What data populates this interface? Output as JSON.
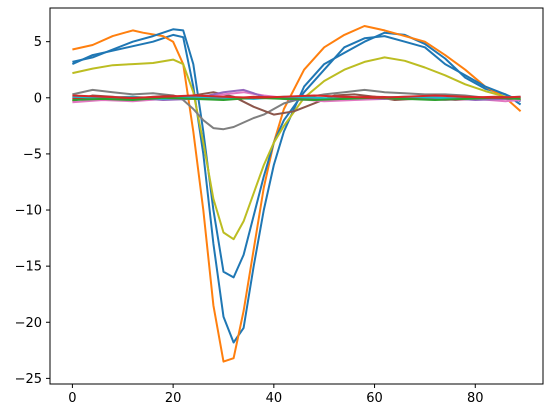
{
  "chart_data": {
    "type": "line",
    "title": "",
    "xlabel": "",
    "ylabel": "",
    "xlim": [
      -4.45,
      93.45
    ],
    "ylim": [
      -25.5,
      8.0
    ],
    "grid": false,
    "legend": "none",
    "x_ticks": [
      0,
      20,
      40,
      60,
      80
    ],
    "y_ticks": [
      5,
      0,
      -5,
      -10,
      -15,
      -20,
      -25
    ],
    "x_tick_labels": [
      "0",
      "20",
      "40",
      "60",
      "80"
    ],
    "y_tick_labels": [
      "5",
      "0",
      "−5",
      "−10",
      "−15",
      "−20",
      "−25"
    ],
    "series": [
      {
        "color": "#1f77b4",
        "points": [
          [
            0,
            3.0
          ],
          [
            4,
            3.8
          ],
          [
            8,
            4.2
          ],
          [
            12,
            4.6
          ],
          [
            16,
            5.0
          ],
          [
            20,
            5.6
          ],
          [
            22,
            5.4
          ],
          [
            24,
            1.0
          ],
          [
            26,
            -5.0
          ],
          [
            28,
            -13.0
          ],
          [
            30,
            -19.5
          ],
          [
            32,
            -21.8
          ],
          [
            34,
            -20.5
          ],
          [
            36,
            -15.0
          ],
          [
            38,
            -10.0
          ],
          [
            40,
            -6.0
          ],
          [
            42,
            -3.0
          ],
          [
            46,
            1.0
          ],
          [
            50,
            3.0
          ],
          [
            54,
            4.0
          ],
          [
            58,
            5.0
          ],
          [
            62,
            5.8
          ],
          [
            66,
            5.6
          ],
          [
            70,
            4.8
          ],
          [
            74,
            3.5
          ],
          [
            78,
            1.8
          ],
          [
            82,
            0.8
          ],
          [
            86,
            0.3
          ],
          [
            89,
            -0.6
          ]
        ]
      },
      {
        "color": "#ff7f0e",
        "points": [
          [
            0,
            4.3
          ],
          [
            4,
            4.7
          ],
          [
            8,
            5.5
          ],
          [
            12,
            6.0
          ],
          [
            14,
            5.8
          ],
          [
            18,
            5.5
          ],
          [
            20,
            5.0
          ],
          [
            22,
            3.0
          ],
          [
            24,
            -3.0
          ],
          [
            26,
            -10.0
          ],
          [
            28,
            -18.5
          ],
          [
            30,
            -23.5
          ],
          [
            32,
            -23.2
          ],
          [
            34,
            -19.0
          ],
          [
            36,
            -13.5
          ],
          [
            38,
            -8.0
          ],
          [
            40,
            -4.0
          ],
          [
            42,
            -1.0
          ],
          [
            46,
            2.5
          ],
          [
            50,
            4.5
          ],
          [
            54,
            5.6
          ],
          [
            58,
            6.4
          ],
          [
            62,
            6.0
          ],
          [
            66,
            5.5
          ],
          [
            70,
            5.0
          ],
          [
            74,
            3.8
          ],
          [
            78,
            2.5
          ],
          [
            82,
            1.0
          ],
          [
            86,
            0.0
          ],
          [
            89,
            -1.2
          ]
        ]
      },
      {
        "color": "#1f77b4",
        "points": [
          [
            0,
            3.2
          ],
          [
            4,
            3.6
          ],
          [
            8,
            4.3
          ],
          [
            12,
            5.0
          ],
          [
            16,
            5.5
          ],
          [
            20,
            6.1
          ],
          [
            22,
            6.0
          ],
          [
            24,
            3.0
          ],
          [
            26,
            -3.0
          ],
          [
            28,
            -10.0
          ],
          [
            30,
            -15.5
          ],
          [
            32,
            -16.0
          ],
          [
            34,
            -14.0
          ],
          [
            36,
            -10.5
          ],
          [
            38,
            -7.0
          ],
          [
            40,
            -4.0
          ],
          [
            42,
            -2.0
          ],
          [
            46,
            0.5
          ],
          [
            50,
            2.5
          ],
          [
            54,
            4.5
          ],
          [
            58,
            5.3
          ],
          [
            62,
            5.5
          ],
          [
            66,
            5.0
          ],
          [
            70,
            4.5
          ],
          [
            74,
            3.0
          ],
          [
            78,
            2.0
          ],
          [
            82,
            1.0
          ],
          [
            86,
            0.3
          ],
          [
            89,
            -0.3
          ]
        ]
      },
      {
        "color": "#bcbd22",
        "points": [
          [
            0,
            2.2
          ],
          [
            4,
            2.6
          ],
          [
            8,
            2.9
          ],
          [
            12,
            3.0
          ],
          [
            16,
            3.1
          ],
          [
            20,
            3.4
          ],
          [
            22,
            3.0
          ],
          [
            24,
            0.5
          ],
          [
            26,
            -4.0
          ],
          [
            28,
            -9.0
          ],
          [
            30,
            -12.0
          ],
          [
            32,
            -12.6
          ],
          [
            34,
            -11.0
          ],
          [
            36,
            -8.5
          ],
          [
            38,
            -6.0
          ],
          [
            40,
            -4.0
          ],
          [
            42,
            -2.5
          ],
          [
            46,
            0.0
          ],
          [
            50,
            1.5
          ],
          [
            54,
            2.5
          ],
          [
            58,
            3.2
          ],
          [
            62,
            3.6
          ],
          [
            66,
            3.3
          ],
          [
            70,
            2.7
          ],
          [
            74,
            2.0
          ],
          [
            78,
            1.2
          ],
          [
            82,
            0.6
          ],
          [
            86,
            0.1
          ],
          [
            89,
            -0.2
          ]
        ]
      },
      {
        "color": "#7f7f7f",
        "points": [
          [
            0,
            0.3
          ],
          [
            4,
            0.7
          ],
          [
            8,
            0.5
          ],
          [
            12,
            0.3
          ],
          [
            16,
            0.4
          ],
          [
            20,
            0.2
          ],
          [
            22,
            -0.2
          ],
          [
            24,
            -1.0
          ],
          [
            26,
            -2.0
          ],
          [
            28,
            -2.7
          ],
          [
            30,
            -2.8
          ],
          [
            32,
            -2.6
          ],
          [
            34,
            -2.2
          ],
          [
            36,
            -1.8
          ],
          [
            38,
            -1.5
          ],
          [
            40,
            -1.0
          ],
          [
            42,
            -0.5
          ],
          [
            46,
            0.0
          ],
          [
            50,
            0.3
          ],
          [
            54,
            0.5
          ],
          [
            58,
            0.7
          ],
          [
            62,
            0.5
          ],
          [
            66,
            0.4
          ],
          [
            70,
            0.3
          ],
          [
            74,
            0.3
          ],
          [
            78,
            0.2
          ],
          [
            82,
            0.0
          ],
          [
            86,
            -0.1
          ],
          [
            89,
            -0.2
          ]
        ]
      },
      {
        "color": "#8c564b",
        "points": [
          [
            0,
            -0.3
          ],
          [
            4,
            0.2
          ],
          [
            8,
            0.1
          ],
          [
            12,
            -0.1
          ],
          [
            16,
            0.1
          ],
          [
            20,
            0.2
          ],
          [
            22,
            0.0
          ],
          [
            24,
            0.2
          ],
          [
            28,
            0.5
          ],
          [
            32,
            0.1
          ],
          [
            36,
            -0.8
          ],
          [
            40,
            -1.5
          ],
          [
            44,
            -1.2
          ],
          [
            48,
            -0.5
          ],
          [
            52,
            0.2
          ],
          [
            56,
            0.3
          ],
          [
            60,
            0.1
          ],
          [
            64,
            -0.2
          ],
          [
            68,
            -0.1
          ],
          [
            72,
            0.0
          ],
          [
            76,
            -0.2
          ],
          [
            80,
            -0.1
          ],
          [
            84,
            0.0
          ],
          [
            89,
            -0.2
          ]
        ]
      },
      {
        "color": "#e377c2",
        "points": [
          [
            0,
            -0.4
          ],
          [
            6,
            -0.2
          ],
          [
            12,
            -0.3
          ],
          [
            18,
            -0.1
          ],
          [
            24,
            0.1
          ],
          [
            30,
            0.3
          ],
          [
            34,
            0.5
          ],
          [
            38,
            0.2
          ],
          [
            44,
            -0.1
          ],
          [
            50,
            -0.3
          ],
          [
            56,
            -0.2
          ],
          [
            62,
            -0.1
          ],
          [
            68,
            0.0
          ],
          [
            74,
            -0.2
          ],
          [
            80,
            -0.1
          ],
          [
            86,
            -0.3
          ],
          [
            89,
            -0.2
          ]
        ]
      },
      {
        "color": "#9467bd",
        "points": [
          [
            0,
            0.0
          ],
          [
            6,
            -0.1
          ],
          [
            12,
            0.0
          ],
          [
            18,
            -0.2
          ],
          [
            24,
            -0.1
          ],
          [
            30,
            0.5
          ],
          [
            34,
            0.7
          ],
          [
            38,
            0.1
          ],
          [
            44,
            -0.2
          ],
          [
            50,
            -0.1
          ],
          [
            56,
            0.0
          ],
          [
            62,
            -0.1
          ],
          [
            68,
            0.1
          ],
          [
            74,
            0.0
          ],
          [
            80,
            -0.2
          ],
          [
            86,
            -0.1
          ],
          [
            89,
            0.0
          ]
        ]
      },
      {
        "color": "#d62728",
        "points": [
          [
            0,
            -0.1
          ],
          [
            6,
            0.0
          ],
          [
            12,
            -0.1
          ],
          [
            18,
            0.1
          ],
          [
            24,
            0.0
          ],
          [
            30,
            -0.1
          ],
          [
            36,
            0.1
          ],
          [
            42,
            0.0
          ],
          [
            48,
            -0.1
          ],
          [
            54,
            0.0
          ],
          [
            60,
            0.1
          ],
          [
            66,
            0.0
          ],
          [
            72,
            -0.1
          ],
          [
            78,
            0.0
          ],
          [
            84,
            0.1
          ],
          [
            89,
            0.0
          ]
        ]
      },
      {
        "color": "#17becf",
        "points": [
          [
            0,
            0.1
          ],
          [
            6,
            0.0
          ],
          [
            12,
            0.1
          ],
          [
            18,
            -0.1
          ],
          [
            24,
            0.1
          ],
          [
            30,
            0.0
          ],
          [
            36,
            -0.1
          ],
          [
            42,
            0.1
          ],
          [
            48,
            0.0
          ],
          [
            54,
            -0.1
          ],
          [
            60,
            0.0
          ],
          [
            66,
            0.1
          ],
          [
            72,
            0.0
          ],
          [
            78,
            -0.1
          ],
          [
            84,
            0.0
          ],
          [
            89,
            0.1
          ]
        ]
      },
      {
        "color": "#2ca02c",
        "points": [
          [
            0,
            -0.2
          ],
          [
            6,
            -0.1
          ],
          [
            12,
            -0.2
          ],
          [
            18,
            0.0
          ],
          [
            24,
            -0.1
          ],
          [
            30,
            -0.2
          ],
          [
            36,
            0.0
          ],
          [
            42,
            -0.1
          ],
          [
            48,
            -0.2
          ],
          [
            54,
            -0.1
          ],
          [
            60,
            0.0
          ],
          [
            66,
            -0.1
          ],
          [
            72,
            -0.2
          ],
          [
            78,
            -0.1
          ],
          [
            84,
            0.0
          ],
          [
            89,
            -0.1
          ]
        ]
      },
      {
        "color": "#d62728",
        "points": [
          [
            0,
            0.2
          ],
          [
            6,
            0.1
          ],
          [
            12,
            0.0
          ],
          [
            18,
            0.1
          ],
          [
            24,
            0.2
          ],
          [
            30,
            0.1
          ],
          [
            36,
            0.0
          ],
          [
            42,
            0.1
          ],
          [
            48,
            0.2
          ],
          [
            54,
            0.1
          ],
          [
            60,
            0.0
          ],
          [
            66,
            0.1
          ],
          [
            72,
            0.2
          ],
          [
            78,
            0.1
          ],
          [
            84,
            0.0
          ],
          [
            89,
            0.1
          ]
        ]
      }
    ]
  }
}
